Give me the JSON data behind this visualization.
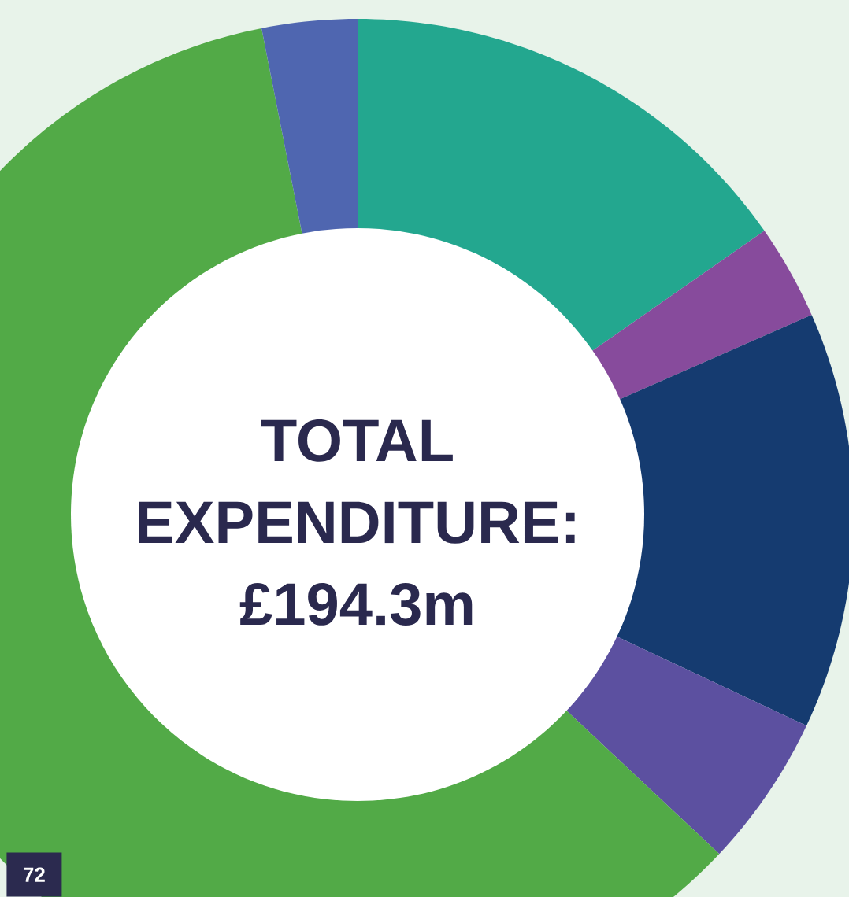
{
  "chart_data": {
    "type": "donut",
    "title": "TOTAL EXPENDITURE: £194.3m",
    "categories": [
      null,
      null,
      null,
      null,
      null,
      null
    ],
    "values": [
      15.3,
      3.1,
      13.6,
      5.0,
      59.9,
      3.1
    ],
    "colors": [
      "#23a78f",
      "#874b9c",
      "#153b70",
      "#5c50a0",
      "#52aa47",
      "#4f66b0"
    ],
    "annotations": [
      "72"
    ]
  }
}
